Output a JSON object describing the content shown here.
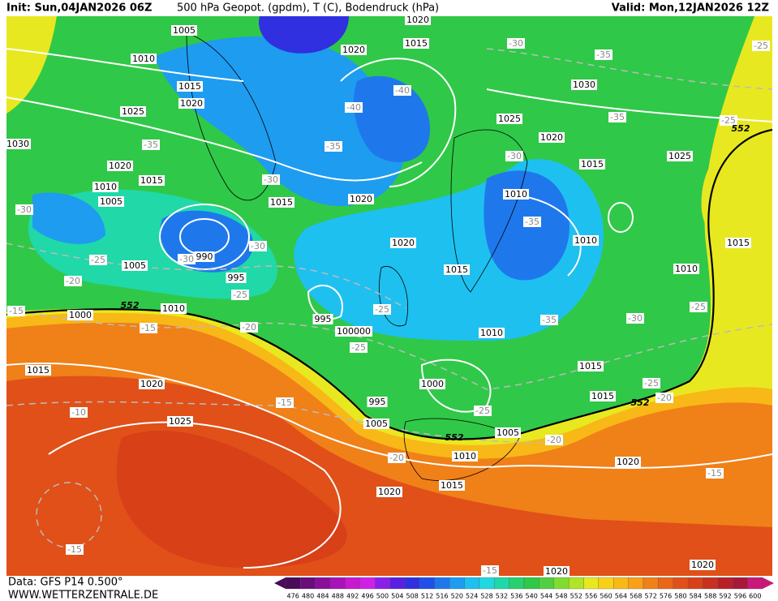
{
  "header": {
    "init": "Init: Sun,04JAN2026 06Z",
    "title": "500 hPa Geopot. (gpdm), T (C), Bodendruck (hPa)",
    "valid": "Valid: Mon,12JAN2026 12Z"
  },
  "footer": {
    "data": "Data: GFS P14 0.500°",
    "site": "WWW.WETTERZENTRALE.DE"
  },
  "legend": {
    "values": [
      476,
      480,
      484,
      488,
      492,
      496,
      500,
      504,
      508,
      512,
      516,
      520,
      524,
      528,
      532,
      536,
      540,
      544,
      548,
      552,
      556,
      560,
      564,
      568,
      572,
      576,
      580,
      584,
      588,
      592,
      596,
      600
    ],
    "colors": [
      "#4b0a5a",
      "#6a0c7c",
      "#8a0e9a",
      "#a812b8",
      "#c818d0",
      "#d020e8",
      "#8a20e8",
      "#5a20e0",
      "#3030e0",
      "#2050e8",
      "#1e78ec",
      "#1e9cf0",
      "#1ec0f0",
      "#20d8e0",
      "#20d8a8",
      "#28d070",
      "#30c848",
      "#50d040",
      "#80dc30",
      "#b0e428",
      "#e8e820",
      "#f8d018",
      "#f8b818",
      "#f8a018",
      "#f08018",
      "#e86818",
      "#e05018",
      "#d84018",
      "#c83020",
      "#b82028",
      "#a81838",
      "#c8187a"
    ]
  },
  "map": {
    "pressure_labels": [
      "1020",
      "1005",
      "1020",
      "1015",
      "1010",
      "1015",
      "1020",
      "1030",
      "1025",
      "1025",
      "1020",
      "1030",
      "1020",
      "1025",
      "1015",
      "1015",
      "1010",
      "1015",
      "1020",
      "1010",
      "1005",
      "1020",
      "1010",
      "1015",
      "990",
      "1015",
      "1005",
      "995",
      "1010",
      "1010",
      "1000",
      "995",
      "100000",
      "1010",
      "1015",
      "1020",
      "1015",
      "1000",
      "995",
      "1015",
      "1025",
      "1005",
      "1005",
      "1010",
      "1020",
      "1015",
      "1020",
      "1020",
      "1020"
    ],
    "temperature_labels": [
      "-30",
      "-35",
      "-25",
      "-40",
      "-40",
      "-35",
      "-25",
      "-35",
      "-35",
      "-30",
      "-30",
      "-30",
      "-35",
      "-25",
      "-30",
      "-30",
      "-20",
      "-25",
      "-25",
      "-15",
      "-15",
      "-20",
      "-25",
      "-30",
      "-35",
      "-25",
      "-25",
      "-20",
      "-15",
      "-25",
      "-20",
      "-10",
      "-20",
      "-15",
      "-15",
      "-15"
    ],
    "geopotential_labels": [
      "552",
      "552",
      "552",
      "552"
    ]
  }
}
